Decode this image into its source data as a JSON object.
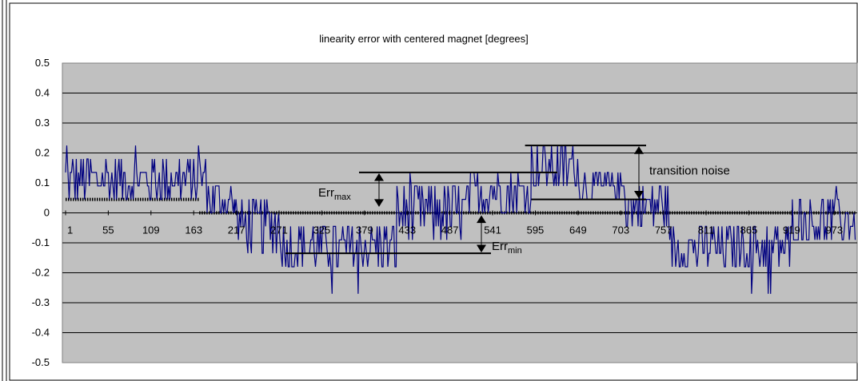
{
  "chart_data": {
    "type": "line",
    "title": "linearity error with centered magnet [degrees]",
    "xlabel": "",
    "ylabel": "",
    "ylim": [
      -0.5,
      0.5
    ],
    "yticks": [
      0.5,
      0.4,
      0.3,
      0.2,
      0.1,
      0,
      -0.1,
      -0.2,
      -0.3,
      -0.4,
      -0.5
    ],
    "ytick_labels": [
      "0.5",
      "0.4",
      "0.3",
      "0.2",
      "0.1",
      "0",
      "-0.1",
      "-0.2",
      "-0.3",
      "-0.4",
      "-0.5"
    ],
    "xlim": [
      1,
      1000
    ],
    "xticks": [
      1,
      55,
      109,
      163,
      217,
      271,
      325,
      379,
      433,
      487,
      541,
      595,
      649,
      703,
      757,
      811,
      865,
      919,
      973
    ],
    "xtick_labels": [
      "1",
      "55",
      "109",
      "163",
      "217",
      "271",
      "325",
      "379",
      "433",
      "487",
      "541",
      "595",
      "649",
      "703",
      "757",
      "811",
      "865",
      "919",
      "973"
    ],
    "grid": true,
    "plot_background": "#c0c0c0",
    "series": [
      {
        "color": "#000080",
        "description": "noisy linearity error signal, values quantized to 0.045 deg steps",
        "segments": [
          {
            "x_range": [
              1,
              180
            ],
            "levels": [
              0.045,
              0.09,
              0.135,
              0.18
            ],
            "peak": 0.225
          },
          {
            "x_range": [
              180,
              215
            ],
            "levels": [
              0,
              0.045,
              0.09
            ],
            "peak": 0.135
          },
          {
            "x_range": [
              215,
              275
            ],
            "levels": [
              -0.135,
              -0.09,
              -0.045,
              0,
              0.045
            ],
            "peak": 0.045
          },
          {
            "x_range": [
              275,
              420
            ],
            "levels": [
              -0.18,
              -0.135,
              -0.09,
              -0.045
            ],
            "trough": -0.27
          },
          {
            "x_range": [
              420,
              510
            ],
            "levels": [
              -0.09,
              -0.045,
              0,
              0.045,
              0.09
            ],
            "peak": 0.135
          },
          {
            "x_range": [
              510,
              590
            ],
            "levels": [
              0,
              0.045,
              0.09,
              0.135
            ],
            "peak": 0.18
          },
          {
            "x_range": [
              590,
              650
            ],
            "levels": [
              0.09,
              0.135,
              0.18,
              0.225
            ],
            "peak": 0.225
          },
          {
            "x_range": [
              650,
              710
            ],
            "levels": [
              0.045,
              0.09,
              0.135
            ],
            "peak": 0.18
          },
          {
            "x_range": [
              710,
              765
            ],
            "levels": [
              -0.045,
              0,
              0.045,
              0.09
            ],
            "peak": 0.09
          },
          {
            "x_range": [
              765,
              920
            ],
            "levels": [
              -0.18,
              -0.135,
              -0.09,
              -0.045
            ],
            "trough": -0.27
          },
          {
            "x_range": [
              920,
              1000
            ],
            "levels": [
              -0.09,
              -0.045,
              0,
              0.045
            ],
            "peak": 0.09
          }
        ]
      },
      {
        "color": "#000000",
        "style": "dotted",
        "description": "ideal transition steps",
        "steps": [
          {
            "x_range": [
              1,
              170
            ],
            "value": 0.045
          },
          {
            "x_range": [
              170,
              1000
            ],
            "value": 0
          }
        ]
      }
    ],
    "annotations": {
      "transition_noise": {
        "label": "transition noise",
        "top_value": 0.225,
        "bottom_value": 0.045,
        "top_x_range": [
          582,
          730
        ],
        "bottom_x_range": [
          590,
          730
        ]
      },
      "err_max": {
        "label_main": "Err",
        "label_sub": "max",
        "value": 0.135,
        "x_range": [
          365,
          620
        ]
      },
      "err_min": {
        "label_main": "Err",
        "label_sub": "min",
        "value": -0.135,
        "x_range": [
          278,
          541
        ]
      }
    }
  }
}
